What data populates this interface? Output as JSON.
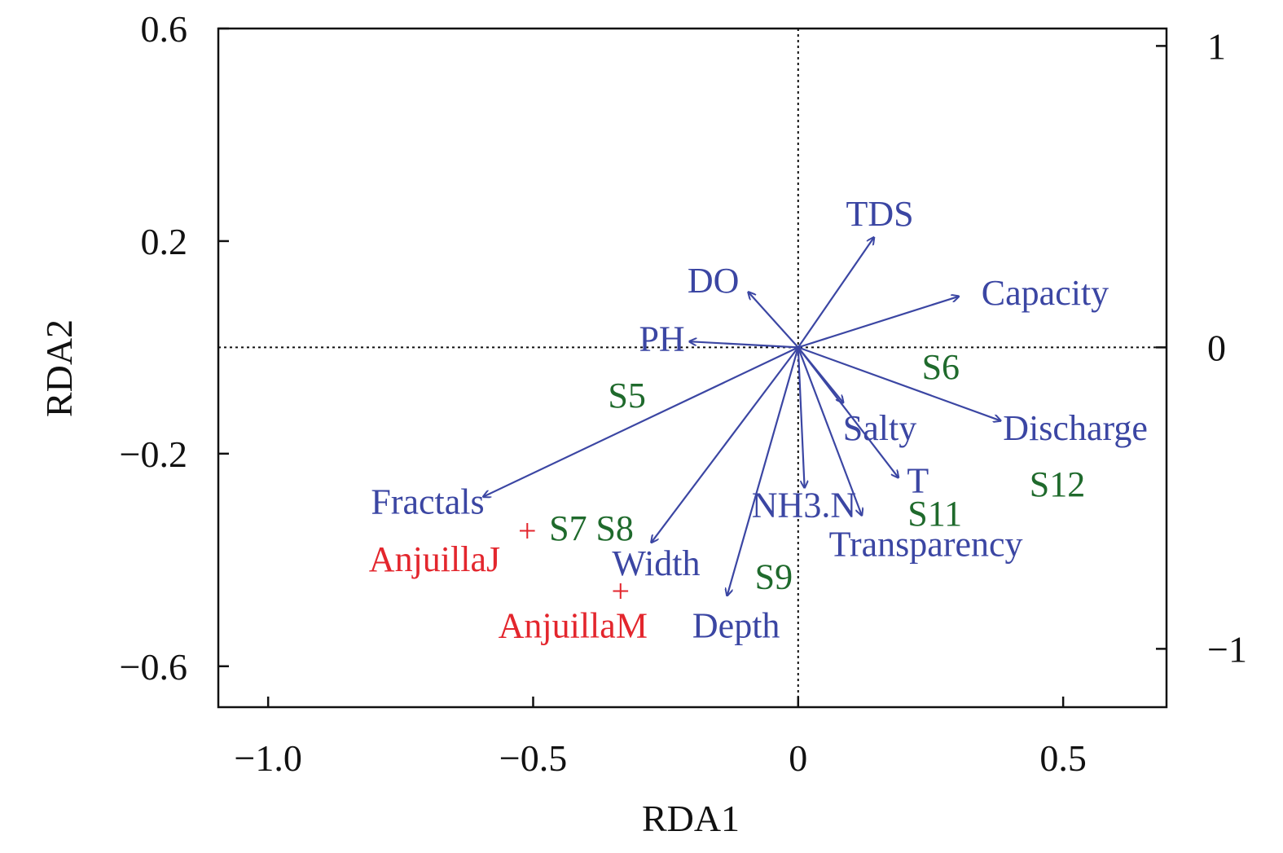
{
  "chart_data": {
    "type": "scatter",
    "subtype": "rda-biplot",
    "xlabel": "RDA1",
    "ylabel": "RDA2",
    "xlim": [
      -1.094,
      0.695
    ],
    "ylim": [
      -0.677,
      0.6
    ],
    "x_ticks": [
      {
        "v": -1.0,
        "label": "−1.0"
      },
      {
        "v": -0.5,
        "label": "−0.5"
      },
      {
        "v": 0,
        "label": "0"
      },
      {
        "v": 0.5,
        "label": "0.5"
      }
    ],
    "y_ticks": [
      {
        "v": 0.6,
        "label": "0.6"
      },
      {
        "v": 0.2,
        "label": "0.2"
      },
      {
        "v": -0.2,
        "label": "−0.2"
      },
      {
        "v": -0.6,
        "label": "−0.6"
      }
    ],
    "y2_ticks": [
      {
        "v": 1,
        "label": "1"
      },
      {
        "v": 0,
        "label": "0"
      },
      {
        "v": -1,
        "label": "−1"
      }
    ],
    "y2_scale_per_primary": 1.763,
    "colors": {
      "env": "#3b46a3",
      "site": "#1f6a2c",
      "species": "#e3262d",
      "axis": "#111111"
    },
    "env_arrows": [
      {
        "name": "TDS",
        "x": 0.143,
        "y": 0.207,
        "lx": 0.154,
        "ly": 0.252
      },
      {
        "name": "Capacity",
        "x": 0.303,
        "y": 0.096,
        "lx": 0.466,
        "ly": 0.103
      },
      {
        "name": "DO",
        "x": -0.094,
        "y": 0.104,
        "lx": -0.16,
        "ly": 0.126
      },
      {
        "name": "PH",
        "x": -0.205,
        "y": 0.011,
        "lx": -0.257,
        "ly": 0.017
      },
      {
        "name": "Discharge",
        "x": 0.382,
        "y": -0.138,
        "lx": 0.523,
        "ly": -0.151
      },
      {
        "name": "Salty",
        "x": 0.085,
        "y": -0.104,
        "lx": 0.154,
        "ly": -0.151
      },
      {
        "name": "T",
        "x": 0.189,
        "y": -0.245,
        "lx": 0.226,
        "ly": -0.25
      },
      {
        "name": "NH3.N",
        "x": 0.012,
        "y": -0.264,
        "lx": 0.011,
        "ly": -0.296
      },
      {
        "name": "Transparency",
        "x": 0.12,
        "y": -0.316,
        "lx": 0.241,
        "ly": -0.37
      },
      {
        "name": "Depth",
        "x": -0.134,
        "y": -0.467,
        "lx": -0.117,
        "ly": -0.523
      },
      {
        "name": "Width",
        "x": -0.277,
        "y": -0.367,
        "lx": -0.268,
        "ly": -0.406
      },
      {
        "name": "Fractals",
        "x": -0.594,
        "y": -0.281,
        "lx": -0.699,
        "ly": -0.29
      }
    ],
    "sites": [
      {
        "name": "S5",
        "x": -0.323,
        "y": -0.09
      },
      {
        "name": "S6",
        "x": 0.269,
        "y": -0.036
      },
      {
        "name": "S7",
        "x": -0.434,
        "y": -0.34
      },
      {
        "name": "S8",
        "x": -0.346,
        "y": -0.34
      },
      {
        "name": "S9",
        "x": -0.046,
        "y": -0.431
      },
      {
        "name": "S11",
        "x": 0.258,
        "y": -0.312
      },
      {
        "name": "S12",
        "x": 0.489,
        "y": -0.257
      }
    ],
    "species": [
      {
        "name": "AnjuillaJ",
        "x": -0.511,
        "y": -0.346,
        "lx": -0.686,
        "ly": -0.398
      },
      {
        "name": "AnjuillaM",
        "x": -0.335,
        "y": -0.459,
        "lx": -0.425,
        "ly": -0.523
      }
    ]
  }
}
